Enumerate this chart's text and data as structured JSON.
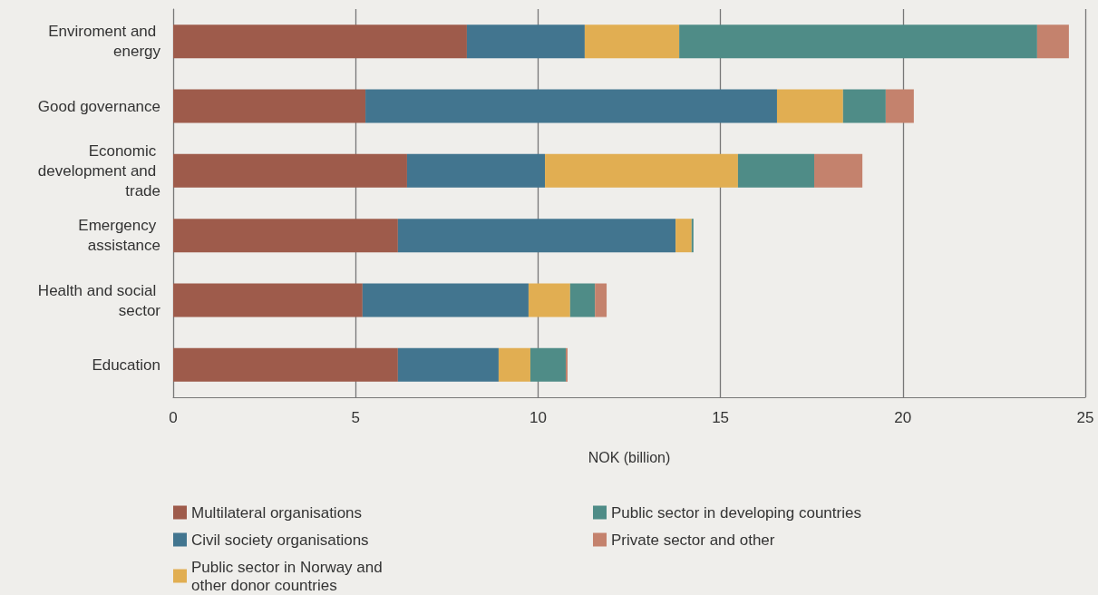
{
  "chart_data": {
    "type": "bar",
    "orientation": "horizontal",
    "stacked": true,
    "xlabel": "NOK (billion)",
    "categories": [
      "Enviroment and energy",
      "Good governance",
      "Economic development and trade",
      "Emergency assistance",
      "Health and social sector",
      "Education"
    ],
    "series": [
      {
        "name": "Multilateral organisations",
        "color": "#9e5b4b",
        "values": [
          8.05,
          5.27,
          6.41,
          6.16,
          5.19,
          6.16
        ]
      },
      {
        "name": "Civil society organisations",
        "color": "#42758f",
        "values": [
          3.23,
          11.28,
          3.78,
          7.61,
          4.55,
          2.76
        ]
      },
      {
        "name": "Public sector in Norway and other donor countries",
        "color": "#e1ae52",
        "values": [
          2.59,
          1.81,
          5.29,
          0.44,
          1.14,
          0.87
        ]
      },
      {
        "name": "Public sector in developing countries",
        "color": "#4f8c87",
        "values": [
          9.81,
          1.17,
          2.09,
          0.05,
          0.68,
          0.97
        ]
      },
      {
        "name": "Private sector and other",
        "color": "#c4826d",
        "values": [
          0.87,
          0.77,
          1.32,
          null,
          0.32,
          0.05
        ]
      }
    ],
    "xlim": [
      0,
      25
    ],
    "xticks": [
      0,
      5,
      10,
      15,
      20,
      25
    ],
    "grid": "x",
    "legend": "bottom"
  }
}
